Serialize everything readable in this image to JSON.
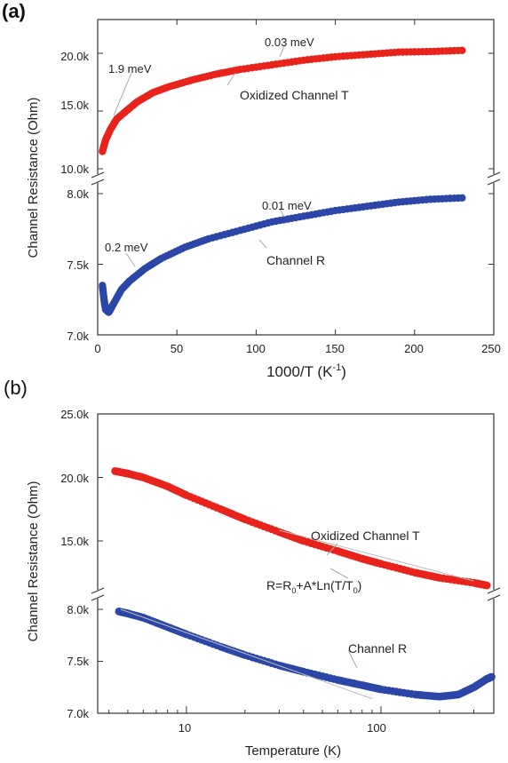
{
  "panels": {
    "a": {
      "label": "(a)"
    },
    "b": {
      "label": "(b)"
    }
  },
  "colors": {
    "red": "#e8231c",
    "blue": "#2b46a6",
    "fit": "#c8c8c8",
    "axis": "#333333"
  },
  "chart_data": [
    {
      "type": "scatter",
      "panel": "(a)",
      "xlabel_main": "1000/T (K",
      "xlabel_sup": "-1",
      "xlabel_end": ")",
      "ylabel": "Channel Resistance (Ohm)",
      "xlim": [
        0,
        250
      ],
      "x_ticks": [
        "0",
        "50",
        "100",
        "150",
        "200",
        "250"
      ],
      "x_tick_values": [
        0,
        50,
        100,
        150,
        200,
        250
      ],
      "broken_y_axis": true,
      "upper_ylim": [
        10000,
        20500
      ],
      "upper_y_ticks": [
        "10.0k",
        "15.0k",
        "20.0k"
      ],
      "upper_y_tick_values": [
        10000,
        15000,
        20000
      ],
      "lower_ylim": [
        7000,
        8050
      ],
      "lower_y_ticks": [
        "7.0k",
        "7.5k",
        "8.0k"
      ],
      "lower_y_tick_values": [
        7000,
        7500,
        8000
      ],
      "series": [
        {
          "name": "Oxidized  Channel T",
          "color": "red",
          "segment": "upper",
          "points": [
            [
              3,
              11500
            ],
            [
              5,
              12500
            ],
            [
              8,
              13400
            ],
            [
              12,
              14300
            ],
            [
              18,
              15000
            ],
            [
              25,
              15800
            ],
            [
              35,
              16600
            ],
            [
              45,
              17100
            ],
            [
              60,
              17700
            ],
            [
              75,
              18200
            ],
            [
              90,
              18600
            ],
            [
              110,
              19000
            ],
            [
              130,
              19400
            ],
            [
              150,
              19700
            ],
            [
              170,
              19900
            ],
            [
              190,
              20100
            ],
            [
              210,
              20150
            ],
            [
              230,
              20250
            ]
          ]
        },
        {
          "name": "Channel R",
          "color": "blue",
          "segment": "lower",
          "points": [
            [
              3,
              7350
            ],
            [
              4,
              7250
            ],
            [
              5,
              7180
            ],
            [
              7,
              7160
            ],
            [
              10,
              7220
            ],
            [
              15,
              7320
            ],
            [
              20,
              7380
            ],
            [
              30,
              7470
            ],
            [
              40,
              7540
            ],
            [
              55,
              7620
            ],
            [
              70,
              7680
            ],
            [
              90,
              7740
            ],
            [
              110,
              7800
            ],
            [
              130,
              7840
            ],
            [
              150,
              7880
            ],
            [
              170,
              7910
            ],
            [
              190,
              7940
            ],
            [
              210,
              7960
            ],
            [
              230,
              7970
            ]
          ]
        }
      ],
      "annotations": [
        "1.9 meV",
        "0.03 meV",
        "Oxidized  Channel T",
        "0.2 meV",
        "0.01 meV",
        "Channel R"
      ]
    },
    {
      "type": "scatter",
      "panel": "(b)",
      "xlabel": "Temperature (K)",
      "ylabel": "Channel Resistance (Ohm)",
      "xscale": "log",
      "xlim": [
        3.5,
        380
      ],
      "x_ticks": [
        "10",
        "100"
      ],
      "x_tick_values": [
        10,
        100
      ],
      "broken_y_axis": true,
      "upper_ylim": [
        11000,
        25000
      ],
      "upper_y_ticks": [
        "15.0k",
        "20.0k",
        "25.0k"
      ],
      "upper_y_tick_values": [
        15000,
        20000,
        25000
      ],
      "lower_ylim": [
        7000,
        8100
      ],
      "lower_y_ticks": [
        "7.0k",
        "7.5k",
        "8.0k"
      ],
      "lower_y_tick_values": [
        7000,
        7500,
        8000
      ],
      "series": [
        {
          "name": "Oxidized Channel T",
          "color": "red",
          "segment": "upper",
          "points": [
            [
              4.3,
              20500
            ],
            [
              5,
              20300
            ],
            [
              6,
              20000
            ],
            [
              8,
              19300
            ],
            [
              10,
              18600
            ],
            [
              15,
              17500
            ],
            [
              20,
              16700
            ],
            [
              30,
              15700
            ],
            [
              40,
              15000
            ],
            [
              60,
              14200
            ],
            [
              80,
              13600
            ],
            [
              100,
              13200
            ],
            [
              150,
              12500
            ],
            [
              200,
              12100
            ],
            [
              300,
              11700
            ],
            [
              350,
              11500
            ]
          ]
        },
        {
          "name": "Channel R",
          "color": "blue",
          "segment": "lower",
          "points": [
            [
              4.5,
              7980
            ],
            [
              5,
              7960
            ],
            [
              6,
              7920
            ],
            [
              8,
              7830
            ],
            [
              10,
              7760
            ],
            [
              15,
              7640
            ],
            [
              20,
              7560
            ],
            [
              30,
              7460
            ],
            [
              40,
              7400
            ],
            [
              60,
              7320
            ],
            [
              80,
              7270
            ],
            [
              100,
              7230
            ],
            [
              150,
              7180
            ],
            [
              200,
              7160
            ],
            [
              250,
              7180
            ],
            [
              300,
              7250
            ],
            [
              350,
              7330
            ],
            [
              370,
              7350
            ]
          ]
        }
      ],
      "annotations": [
        "Oxidized Channel T",
        "R=R",
        "0",
        "+A*Ln(T/T",
        "0",
        ")",
        "Channel R"
      ]
    }
  ]
}
